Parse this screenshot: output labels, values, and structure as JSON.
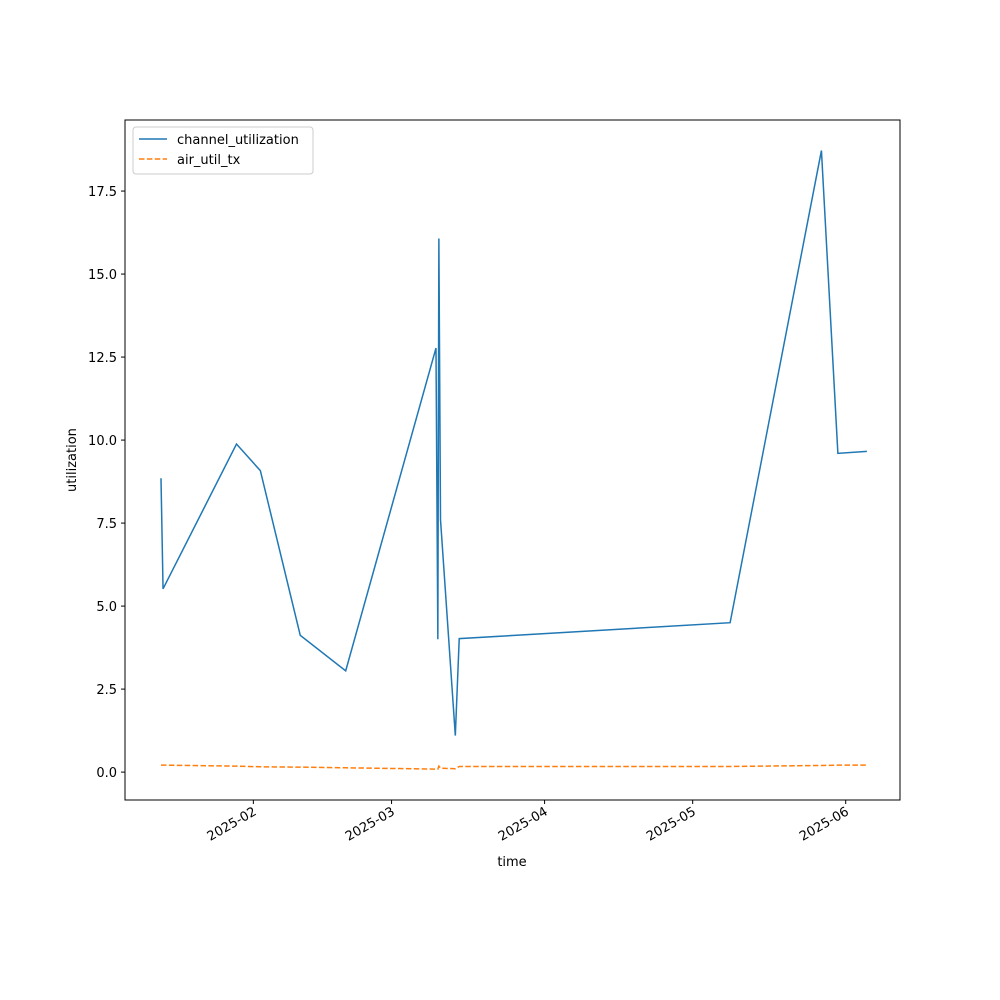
{
  "chart_data": {
    "type": "line",
    "x_label": "time",
    "y_label": "utilization",
    "x": [
      "2025-01-13T07:00",
      "2025-01-13T17:00",
      "2025-01-28T14:00",
      "2025-02-02T10:00",
      "2025-02-10T12:00",
      "2025-02-19T17:00",
      "2025-03-10T00:00",
      "2025-03-10T09:00",
      "2025-03-10T14:00",
      "2025-03-10T22:00",
      "2025-03-13T22:00",
      "2025-03-14T17:00",
      "2025-05-08T14:00",
      "2025-05-27T02:00",
      "2025-05-30T10:00",
      "2025-06-05T07:00"
    ],
    "series": [
      {
        "name": "channel_utilization",
        "color": "#1f77b4",
        "dash": false,
        "values": [
          8.85,
          5.52,
          9.88,
          9.08,
          4.12,
          3.05,
          12.77,
          4.0,
          16.07,
          7.6,
          1.1,
          4.02,
          4.5,
          18.72,
          9.6,
          9.66
        ]
      },
      {
        "name": "air_util_tx",
        "color": "#ff7f0e",
        "dash": true,
        "values": [
          0.21,
          0.21,
          0.18,
          0.16,
          0.15,
          0.13,
          0.09,
          0.09,
          0.18,
          0.12,
          0.1,
          0.17,
          0.17,
          0.2,
          0.21,
          0.21
        ]
      }
    ],
    "xlim": [
      "2025-01-06T00:00",
      "2025-06-12T00:00"
    ],
    "xticks": [
      {
        "value": "2025-02-01T00:00",
        "label": "2025-02"
      },
      {
        "value": "2025-03-01T00:00",
        "label": "2025-03"
      },
      {
        "value": "2025-04-01T00:00",
        "label": "2025-04"
      },
      {
        "value": "2025-05-01T00:00",
        "label": "2025-05"
      },
      {
        "value": "2025-06-01T00:00",
        "label": "2025-06"
      }
    ],
    "ylim": [
      -0.84,
      19.64
    ],
    "yticks": [
      {
        "value": 0,
        "label": "0.0"
      },
      2.5,
      {
        "value": 5,
        "label": "5.0"
      },
      7.5,
      {
        "value": 10,
        "label": "10.0"
      },
      12.5,
      {
        "value": 15,
        "label": "15.0"
      },
      17.5
    ],
    "legend": "upper left",
    "grid": false
  }
}
